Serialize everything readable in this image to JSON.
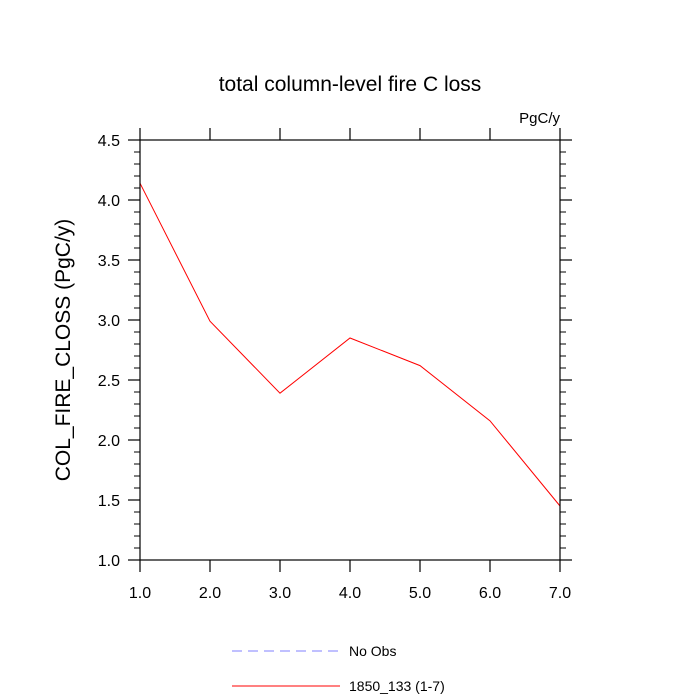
{
  "chart_data": {
    "type": "line",
    "title": "total column-level fire C loss",
    "units": "PgC/y",
    "xlabel": "",
    "ylabel": "COL_FIRE_CLOSS  (PgC/y)",
    "xlim": [
      1,
      7
    ],
    "ylim": [
      1,
      4.5
    ],
    "x_ticks": [
      "1.0",
      "2.0",
      "3.0",
      "4.0",
      "5.0",
      "6.0",
      "7.0"
    ],
    "y_ticks": [
      "1.0",
      "1.5",
      "2.0",
      "2.5",
      "3.0",
      "3.5",
      "4.0",
      "4.5"
    ],
    "grid": false,
    "legend_position": "bottom-center",
    "series": [
      {
        "name": "No Obs",
        "color": "#8080ff",
        "style": "dashed",
        "x": [],
        "y": []
      },
      {
        "name": "1850_133 (1-7)",
        "color": "#ff0000",
        "style": "solid",
        "x": [
          1,
          2,
          3,
          4,
          5,
          6,
          7
        ],
        "y": [
          4.14,
          2.99,
          2.39,
          2.85,
          2.62,
          2.16,
          1.45
        ]
      }
    ]
  }
}
